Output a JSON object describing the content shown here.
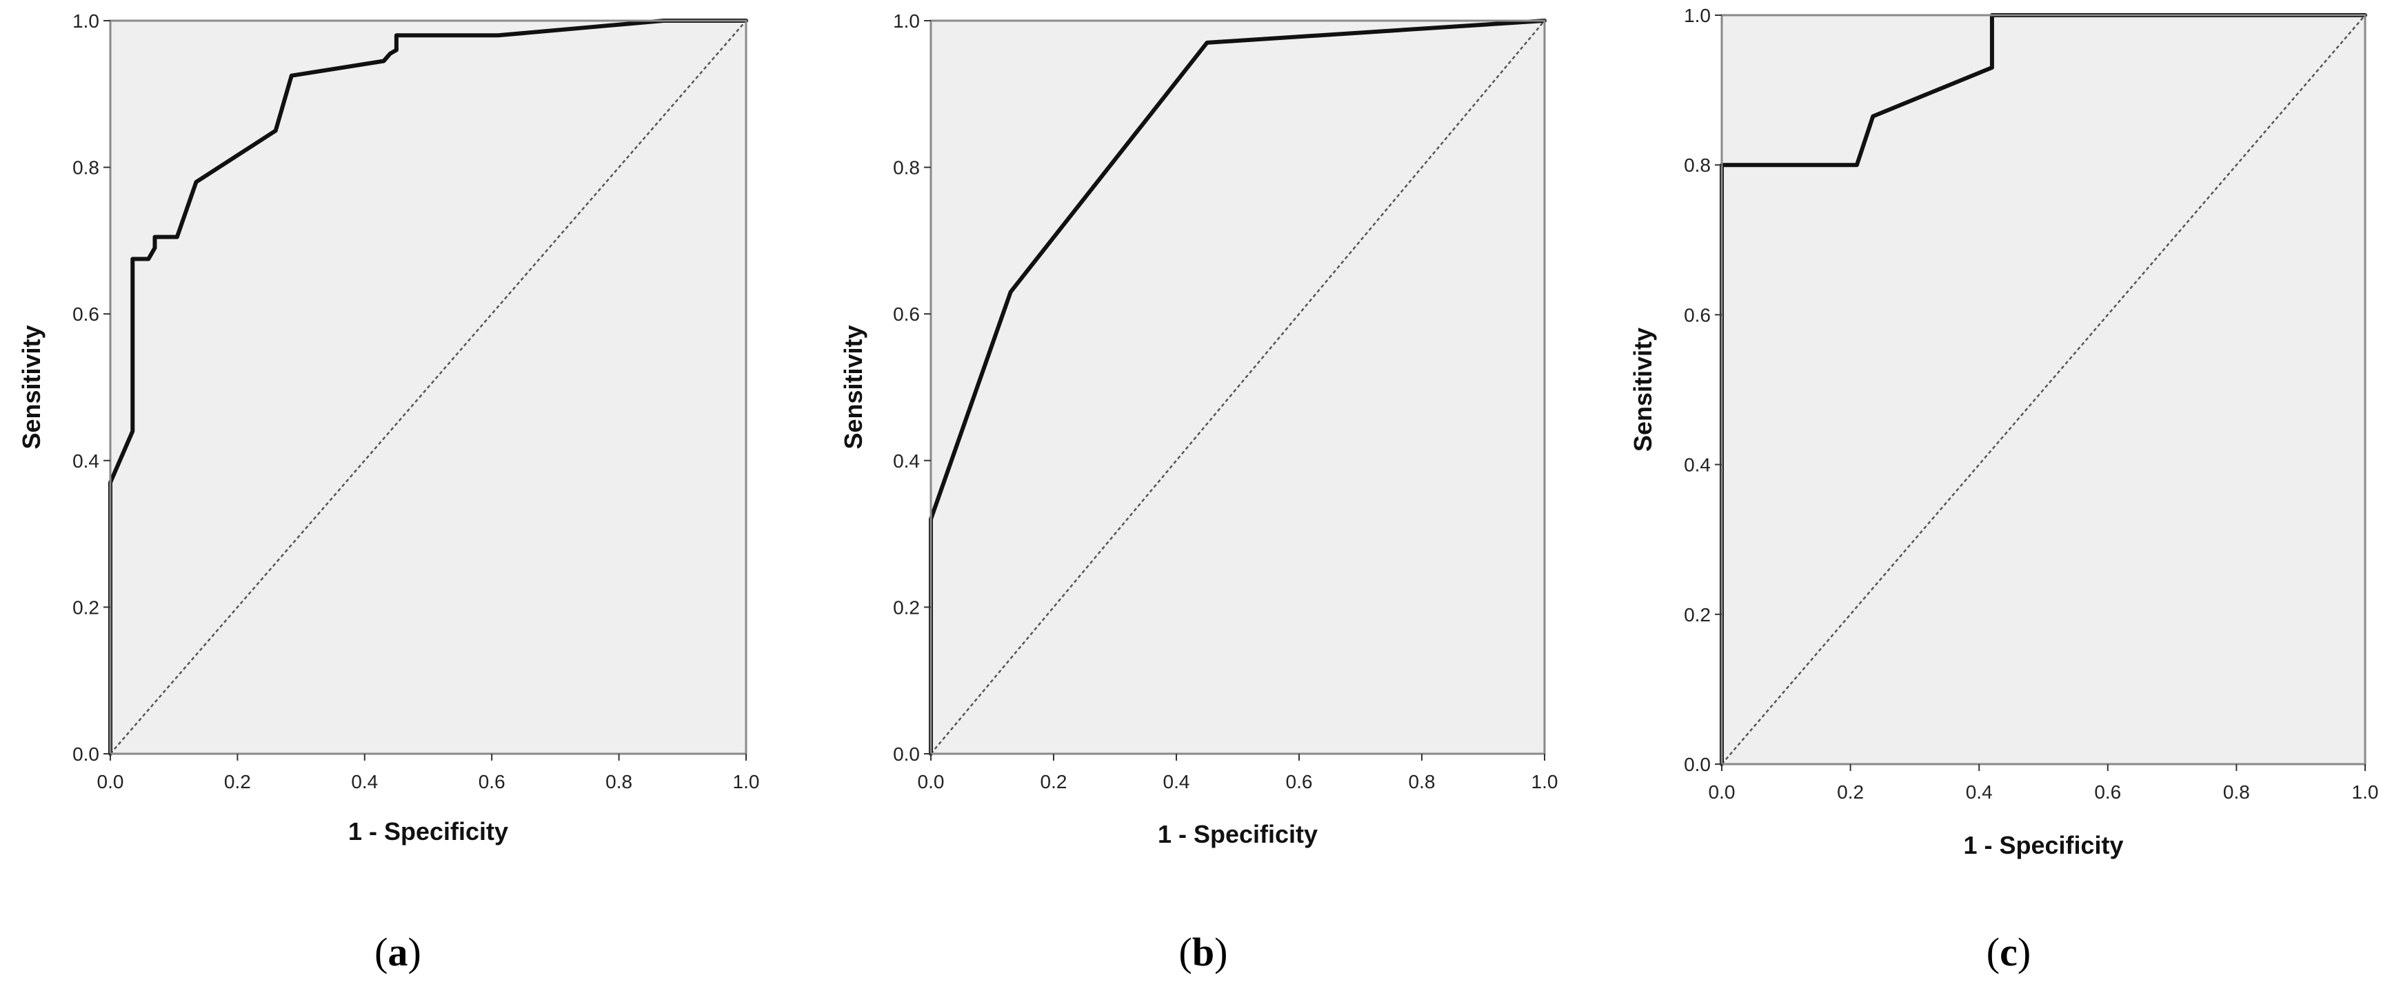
{
  "chart_data": [
    {
      "type": "line",
      "panel": "a",
      "xlabel": "1 - Specificity",
      "ylabel": "Sensitivity",
      "xlim": [
        0,
        1
      ],
      "ylim": [
        0,
        1
      ],
      "xticks": [
        "0.0",
        "0.2",
        "0.4",
        "0.6",
        "0.8",
        "1.0"
      ],
      "yticks": [
        "0.0",
        "0.2",
        "0.4",
        "0.6",
        "0.8",
        "1.0"
      ],
      "grid": false,
      "reference_line": "diagonal",
      "series": [
        {
          "x": [
            0,
            0,
            0.035,
            0.035,
            0.06,
            0.07,
            0.07,
            0.105,
            0.135,
            0.26,
            0.285,
            0.43,
            0.44,
            0.45,
            0.45,
            0.61,
            0.87,
            1.0
          ],
          "y": [
            0,
            0.37,
            0.44,
            0.675,
            0.675,
            0.69,
            0.705,
            0.705,
            0.78,
            0.85,
            0.925,
            0.945,
            0.955,
            0.96,
            0.98,
            0.98,
            1.0,
            1.0
          ]
        }
      ]
    },
    {
      "type": "line",
      "panel": "b",
      "xlabel": "1 - Specificity",
      "ylabel": "Sensitivity",
      "xlim": [
        0,
        1
      ],
      "ylim": [
        0,
        1
      ],
      "xticks": [
        "0.0",
        "0.2",
        "0.4",
        "0.6",
        "0.8",
        "1.0"
      ],
      "yticks": [
        "0.0",
        "0.2",
        "0.4",
        "0.6",
        "0.8",
        "1.0"
      ],
      "grid": false,
      "reference_line": "diagonal",
      "series": [
        {
          "x": [
            0,
            0,
            0.13,
            0.45,
            1.0
          ],
          "y": [
            0,
            0.32,
            0.63,
            0.97,
            1.0
          ]
        }
      ]
    },
    {
      "type": "line",
      "panel": "c",
      "xlabel": "1 - Specificity",
      "ylabel": "Sensitivity",
      "xlim": [
        0,
        1
      ],
      "ylim": [
        0,
        1
      ],
      "xticks": [
        "0.0",
        "0.2",
        "0.4",
        "0.6",
        "0.8",
        "1.0"
      ],
      "yticks": [
        "0.0",
        "0.2",
        "0.4",
        "0.6",
        "0.8",
        "1.0"
      ],
      "grid": false,
      "reference_line": "diagonal",
      "series": [
        {
          "x": [
            0,
            0,
            0.21,
            0.235,
            0.42,
            0.42,
            1.0
          ],
          "y": [
            0,
            0.8,
            0.8,
            0.865,
            0.93,
            1.0,
            1.0
          ]
        }
      ]
    }
  ],
  "panel_labels": [
    "a",
    "b",
    "c"
  ],
  "colors": {
    "plot_background": "#efefef",
    "curve": "#111111",
    "reference": "#555555"
  }
}
